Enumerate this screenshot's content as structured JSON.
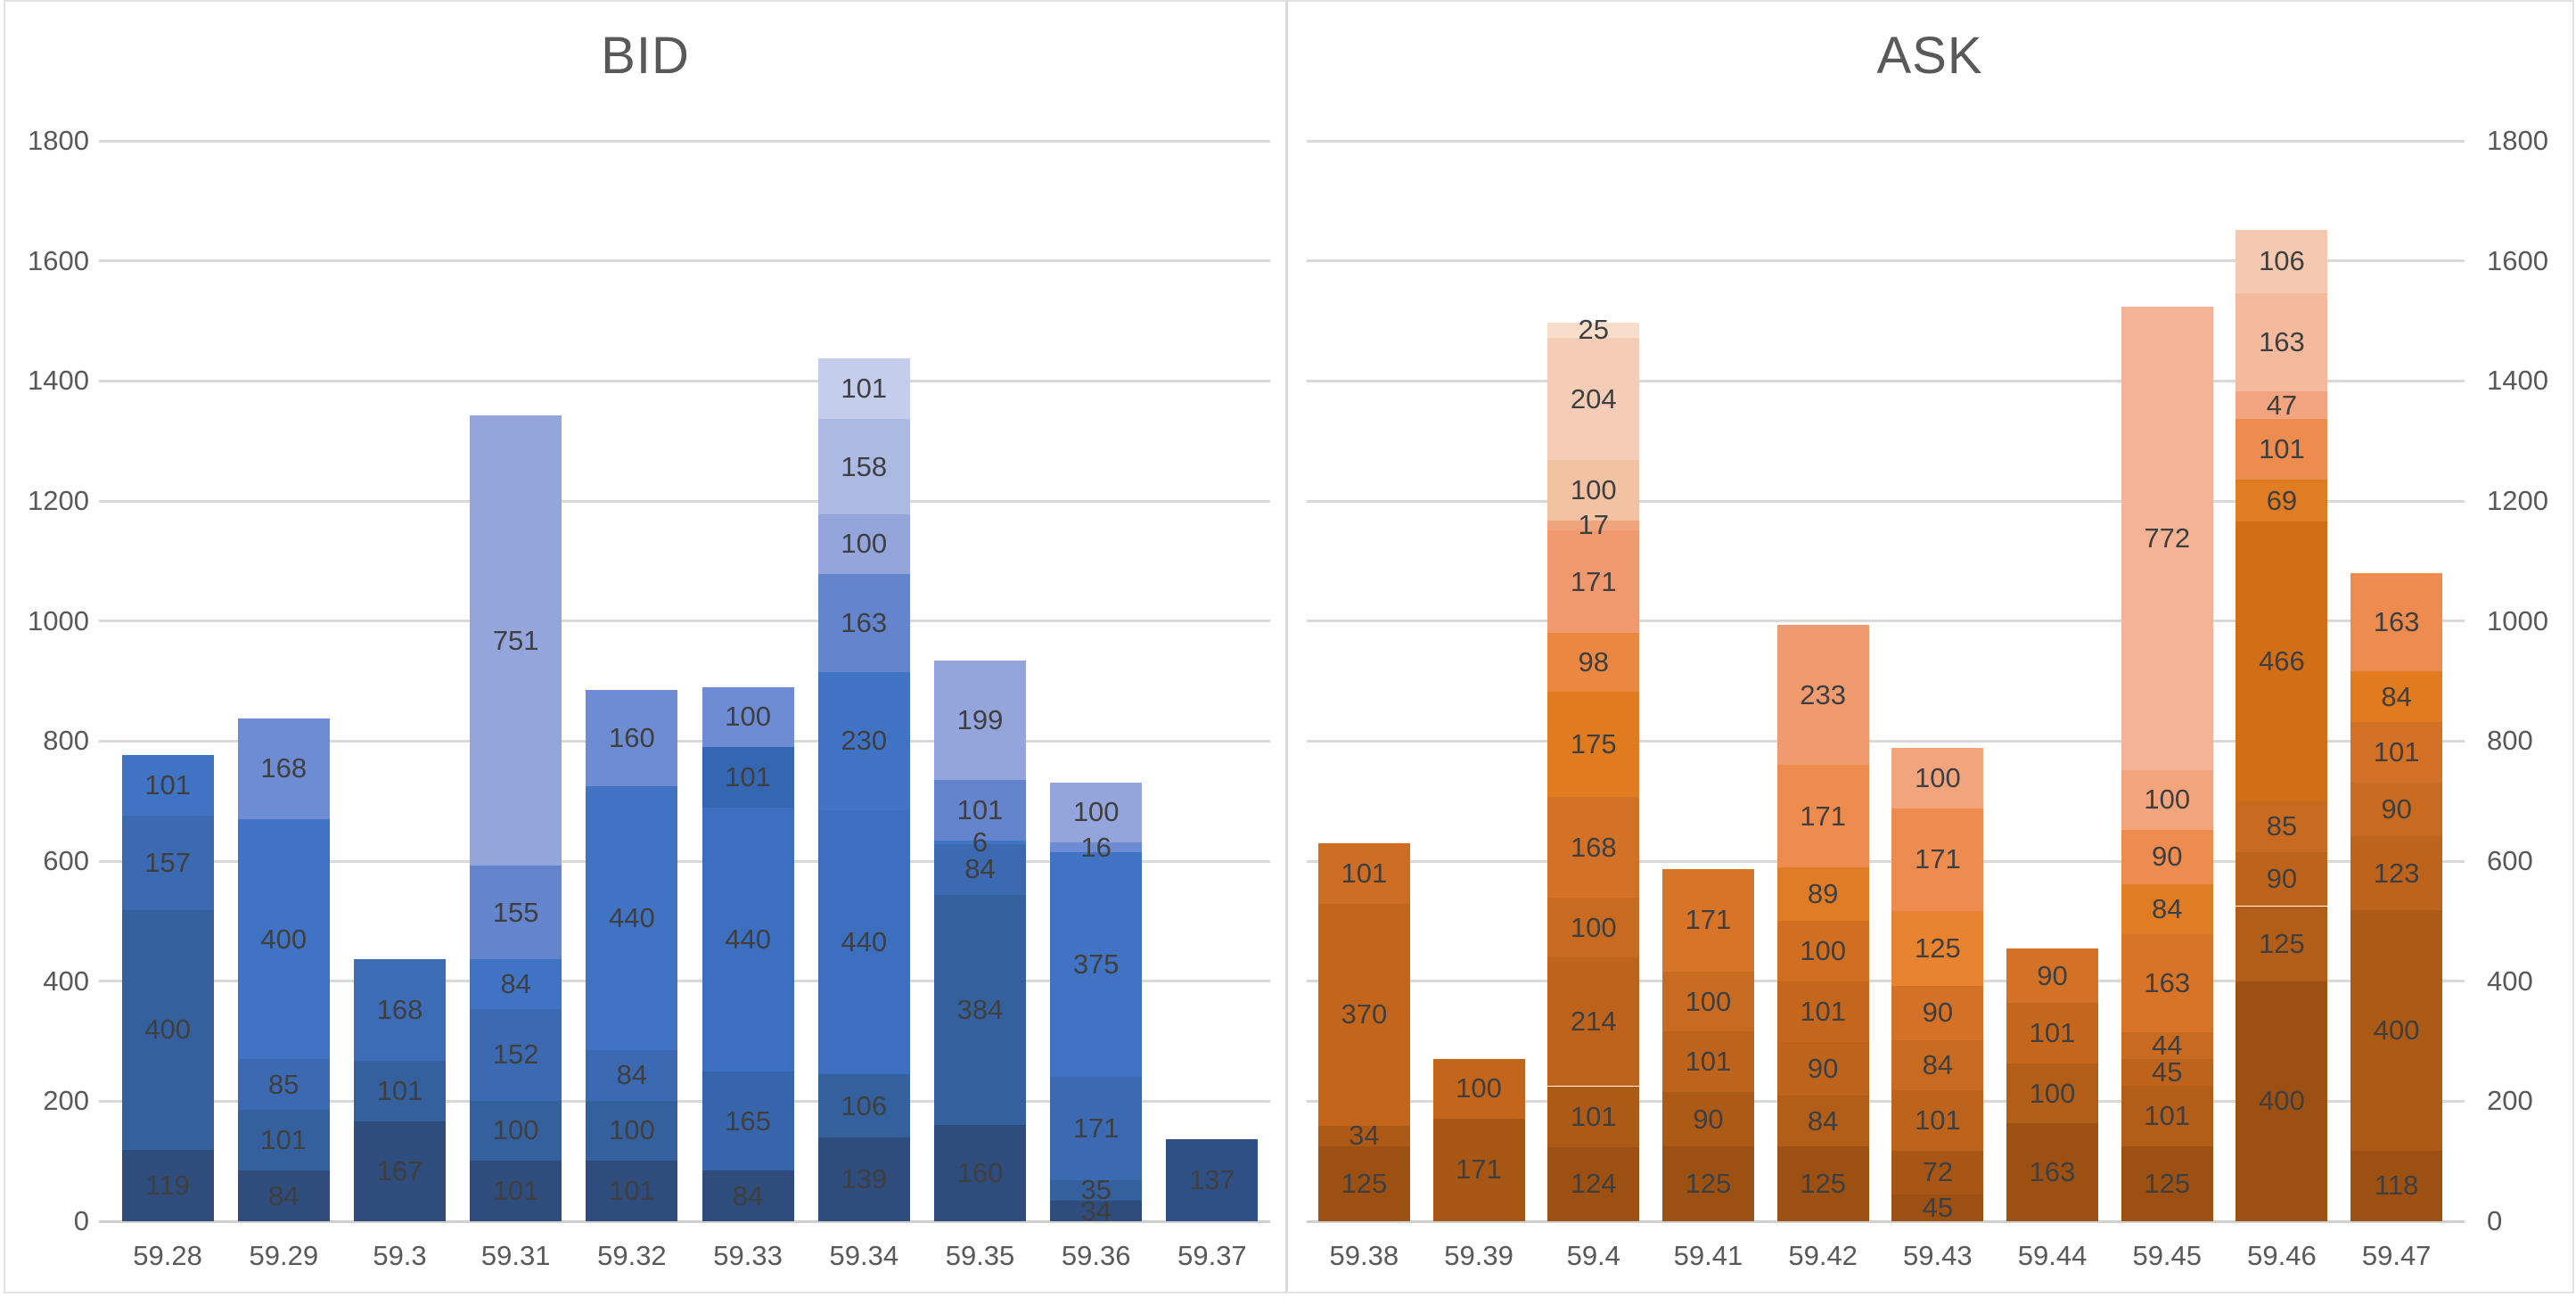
{
  "colors": {
    "background": "#FFFFFF",
    "grid": "#D9D9D9",
    "baseline": "#CFCFCF",
    "frame_border": "#E3E3E3",
    "axis_text": "#595959",
    "title_text": "#595959",
    "segment_label_text": "#3F3F3F",
    "bid_base": "#2E4C7C",
    "ask_base": "#9C5113"
  },
  "axis": {
    "y_min": 0,
    "y_max": 1800,
    "y_step": 200,
    "y_tick_labels": [
      "0",
      "200",
      "400",
      "600",
      "800",
      "1000",
      "1200",
      "1400",
      "1600",
      "1800"
    ]
  },
  "chart_data": [
    {
      "type": "bar",
      "stacked": true,
      "title": "BID",
      "legend": "none",
      "grid": "horizontal",
      "axis_side": "left",
      "ylim": [
        0,
        1800
      ],
      "categories": [
        "59.28",
        "59.29",
        "59.3",
        "59.31",
        "59.32",
        "59.33",
        "59.34",
        "59.35",
        "59.36",
        "59.37"
      ],
      "bars": [
        {
          "price": "59.28",
          "segments": [
            {
              "value": 119,
              "color": "#2E4C7C"
            },
            {
              "value": 400,
              "color": "#35609E"
            },
            {
              "value": 157,
              "color": "#3B69B2"
            },
            {
              "value": 101,
              "color": "#4173C4"
            }
          ]
        },
        {
          "price": "59.29",
          "segments": [
            {
              "value": 84,
              "color": "#2E4C7C"
            },
            {
              "value": 101,
              "color": "#35609E"
            },
            {
              "value": 85,
              "color": "#3B69B2"
            },
            {
              "value": 400,
              "color": "#4173C4"
            },
            {
              "value": 168,
              "color": "#6D8CD3"
            }
          ]
        },
        {
          "price": "59.3",
          "segments": [
            {
              "value": 167,
              "color": "#2E4C7C"
            },
            {
              "value": 101,
              "color": "#35609E"
            },
            {
              "value": 168,
              "color": "#3C6CB6"
            }
          ]
        },
        {
          "price": "59.31",
          "segments": [
            {
              "value": 101,
              "color": "#2E4C7C"
            },
            {
              "value": 100,
              "color": "#35609E"
            },
            {
              "value": 152,
              "color": "#3B69B2"
            },
            {
              "value": 84,
              "color": "#4173C4"
            },
            {
              "value": 155,
              "color": "#6484CE"
            },
            {
              "value": 751,
              "color": "#93A5DB"
            }
          ]
        },
        {
          "price": "59.32",
          "segments": [
            {
              "value": 101,
              "color": "#2E4C7C"
            },
            {
              "value": 100,
              "color": "#35609E"
            },
            {
              "value": 84,
              "color": "#3B69B2"
            },
            {
              "value": 440,
              "color": "#4173C4"
            },
            {
              "value": 160,
              "color": "#6D8CD3"
            }
          ]
        },
        {
          "price": "59.33",
          "segments": [
            {
              "value": 84,
              "color": "#2E4C7C"
            },
            {
              "value": 165,
              "color": "#3765AB"
            },
            {
              "value": 440,
              "color": "#3D6FC0"
            },
            {
              "value": 101,
              "color": "#3566B2"
            },
            {
              "value": 100,
              "color": "#6D8CD3"
            }
          ]
        },
        {
          "price": "59.34",
          "segments": [
            {
              "value": 139,
              "color": "#2E4C7C"
            },
            {
              "value": 106,
              "color": "#35609E"
            },
            {
              "value": 440,
              "color": "#3D6FC0"
            },
            {
              "value": 230,
              "color": "#4173C4"
            },
            {
              "value": 163,
              "color": "#6484CE"
            },
            {
              "value": 100,
              "color": "#93A5DB"
            },
            {
              "value": 158,
              "color": "#ACBAE3"
            },
            {
              "value": 101,
              "color": "#C4CDEB"
            }
          ]
        },
        {
          "price": "59.35",
          "segments": [
            {
              "value": 160,
              "color": "#2E4C7C"
            },
            {
              "value": 384,
              "color": "#35609E"
            },
            {
              "value": 84,
              "color": "#3B69B2"
            },
            {
              "value": 6,
              "color": "#4173C4"
            },
            {
              "value": 101,
              "color": "#6484CE"
            },
            {
              "value": 199,
              "color": "#93A5DB"
            }
          ]
        },
        {
          "price": "59.36",
          "segments": [
            {
              "value": 34,
              "color": "#2E4C7C"
            },
            {
              "value": 35,
              "color": "#35609E"
            },
            {
              "value": 171,
              "color": "#3B69B2"
            },
            {
              "value": 375,
              "color": "#4173C4"
            },
            {
              "value": 16,
              "color": "#6D8CD3"
            },
            {
              "value": 100,
              "color": "#93A5DB"
            }
          ]
        },
        {
          "price": "59.37",
          "segments": [
            {
              "value": 137,
              "color": "#2F5085"
            }
          ]
        }
      ]
    },
    {
      "type": "bar",
      "stacked": true,
      "title": "ASK",
      "legend": "none",
      "grid": "horizontal",
      "axis_side": "right",
      "ylim": [
        0,
        1800
      ],
      "categories": [
        "59.38",
        "59.39",
        "59.4",
        "59.41",
        "59.42",
        "59.43",
        "59.44",
        "59.45",
        "59.46",
        "59.47"
      ],
      "bars": [
        {
          "price": "59.38",
          "segments": [
            {
              "value": 125,
              "color": "#9C5113"
            },
            {
              "value": 34,
              "color": "#AC5A16"
            },
            {
              "value": 370,
              "color": "#C3661C"
            },
            {
              "value": 101,
              "color": "#CE6D24"
            }
          ]
        },
        {
          "price": "59.39",
          "segments": [
            {
              "value": 171,
              "color": "#A75614"
            },
            {
              "value": 100,
              "color": "#C3661C"
            }
          ]
        },
        {
          "price": "59.4",
          "segments": [
            {
              "value": 124,
              "color": "#9C5113"
            },
            {
              "value": 101,
              "color": "#AC5A16"
            },
            {
              "value": 214,
              "color": "#BD631B"
            },
            {
              "value": 100,
              "color": "#C86B21"
            },
            {
              "value": 168,
              "color": "#D37127"
            },
            {
              "value": 175,
              "color": "#E07C1F"
            },
            {
              "value": 98,
              "color": "#EA8740"
            },
            {
              "value": 171,
              "color": "#F0986E"
            },
            {
              "value": 17,
              "color": "#EFA47C"
            },
            {
              "value": 100,
              "color": "#F3C2A2"
            },
            {
              "value": 204,
              "color": "#F5CDB6"
            },
            {
              "value": 25,
              "color": "#F8DDCB"
            }
          ]
        },
        {
          "price": "59.41",
          "segments": [
            {
              "value": 125,
              "color": "#9C5113"
            },
            {
              "value": 90,
              "color": "#AC5A16"
            },
            {
              "value": 101,
              "color": "#BD631B"
            },
            {
              "value": 100,
              "color": "#C86B21"
            },
            {
              "value": 171,
              "color": "#D87428"
            }
          ]
        },
        {
          "price": "59.42",
          "segments": [
            {
              "value": 125,
              "color": "#9C5113"
            },
            {
              "value": 84,
              "color": "#B25D18"
            },
            {
              "value": 90,
              "color": "#BD631B"
            },
            {
              "value": 101,
              "color": "#C4671D"
            },
            {
              "value": 100,
              "color": "#D06F22"
            },
            {
              "value": 89,
              "color": "#E07C26"
            },
            {
              "value": 171,
              "color": "#EE8B4F"
            },
            {
              "value": 233,
              "color": "#F09A70"
            }
          ]
        },
        {
          "price": "59.43",
          "segments": [
            {
              "value": 45,
              "color": "#9C5113"
            },
            {
              "value": 72,
              "color": "#A85615"
            },
            {
              "value": 101,
              "color": "#BD631B"
            },
            {
              "value": 84,
              "color": "#C86B21"
            },
            {
              "value": 90,
              "color": "#D37127"
            },
            {
              "value": 125,
              "color": "#E8832F"
            },
            {
              "value": 171,
              "color": "#EE8B4F"
            },
            {
              "value": 100,
              "color": "#F2A47C"
            }
          ]
        },
        {
          "price": "59.44",
          "segments": [
            {
              "value": 163,
              "color": "#9C5113"
            },
            {
              "value": 100,
              "color": "#B25D18"
            },
            {
              "value": 101,
              "color": "#C4671D"
            },
            {
              "value": 90,
              "color": "#D37127"
            }
          ]
        },
        {
          "price": "59.45",
          "segments": [
            {
              "value": 125,
              "color": "#9C5113"
            },
            {
              "value": 101,
              "color": "#B25D18"
            },
            {
              "value": 45,
              "color": "#BD631B"
            },
            {
              "value": 44,
              "color": "#C86B21"
            },
            {
              "value": 163,
              "color": "#D87428"
            },
            {
              "value": 84,
              "color": "#E07C22"
            },
            {
              "value": 90,
              "color": "#EE8B4F"
            },
            {
              "value": 100,
              "color": "#F2A47C"
            },
            {
              "value": 772,
              "color": "#F3B394"
            }
          ]
        },
        {
          "price": "59.46",
          "segments": [
            {
              "value": 400,
              "color": "#9C5113"
            },
            {
              "value": 125,
              "color": "#B25D18"
            },
            {
              "value": 90,
              "color": "#BD631B"
            },
            {
              "value": 85,
              "color": "#C86B21"
            },
            {
              "value": 466,
              "color": "#D26E16"
            },
            {
              "value": 69,
              "color": "#E07C22"
            },
            {
              "value": 101,
              "color": "#EE8B4F"
            },
            {
              "value": 47,
              "color": "#F2A47E"
            },
            {
              "value": 163,
              "color": "#F3BA9D"
            },
            {
              "value": 106,
              "color": "#F5C8B0"
            }
          ]
        },
        {
          "price": "59.47",
          "segments": [
            {
              "value": 118,
              "color": "#9C5113"
            },
            {
              "value": 400,
              "color": "#AC5A16"
            },
            {
              "value": 123,
              "color": "#BD631B"
            },
            {
              "value": 90,
              "color": "#C86B21"
            },
            {
              "value": 101,
              "color": "#D37127"
            },
            {
              "value": 84,
              "color": "#E07C1F"
            },
            {
              "value": 163,
              "color": "#EE8B4F"
            }
          ]
        }
      ]
    }
  ]
}
